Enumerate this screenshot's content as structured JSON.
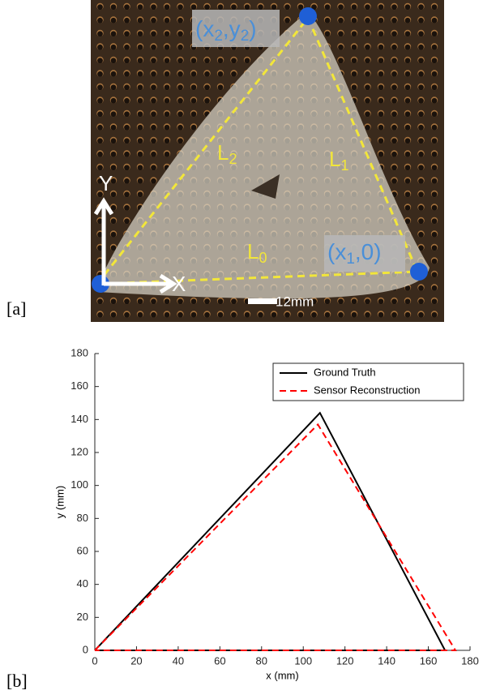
{
  "figure_a": {
    "panel_label": "[a]",
    "annotations": {
      "vertex_2": [
        {
          "text": "(x"
        },
        {
          "text": "2",
          "sub": true
        },
        {
          "text": ",y"
        },
        {
          "text": "2",
          "sub": true
        },
        {
          "text": ")"
        }
      ],
      "vertex_1": [
        {
          "text": "(x"
        },
        {
          "text": "1",
          "sub": true
        },
        {
          "text": ",0)"
        }
      ],
      "side_2": [
        {
          "text": "L"
        },
        {
          "text": "2",
          "sub": true
        }
      ],
      "side_1": [
        {
          "text": "L"
        },
        {
          "text": "1",
          "sub": true
        }
      ],
      "side_0": [
        {
          "text": "L"
        },
        {
          "text": "0",
          "sub": true
        }
      ],
      "axis_y": "Y",
      "axis_x": "X",
      "scale_bar": "12mm"
    }
  },
  "panel_b_label": "[b]",
  "chart_data": {
    "type": "line",
    "xlabel": "x (mm)",
    "ylabel": "y (mm)",
    "xlim": [
      0,
      180
    ],
    "ylim": [
      0,
      180
    ],
    "xticks": [
      0,
      20,
      40,
      60,
      80,
      100,
      120,
      140,
      160,
      180
    ],
    "yticks": [
      0,
      20,
      40,
      60,
      80,
      100,
      120,
      140,
      160,
      180
    ],
    "legend": "upper right",
    "series": [
      {
        "name": "Ground Truth",
        "color": "#000000",
        "dash": false,
        "x": [
          0,
          108,
          168,
          0
        ],
        "values": [
          0,
          144,
          0,
          0
        ]
      },
      {
        "name": "Sensor Reconstruction",
        "color": "#ff0000",
        "dash": true,
        "x": [
          0,
          107,
          173,
          0
        ],
        "values": [
          0,
          137,
          0,
          0
        ]
      }
    ]
  }
}
